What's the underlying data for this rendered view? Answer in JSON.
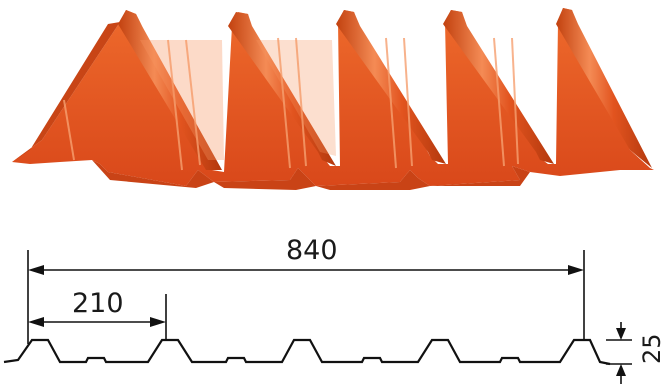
{
  "sheet": {
    "color": "#e2541f",
    "shadow_color": "#b83d12",
    "highlight_color": "#f3925f"
  },
  "dimensions": {
    "overall_width": "840",
    "rib_pitch": "210",
    "rib_height": "25"
  }
}
